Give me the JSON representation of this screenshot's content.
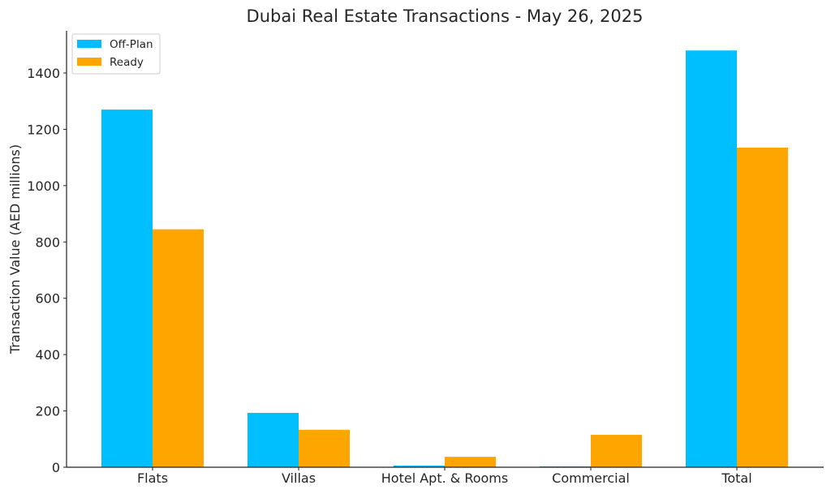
{
  "chart_data": {
    "type": "bar",
    "title": "Dubai Real Estate Transactions - May 26, 2025",
    "xlabel": "",
    "ylabel": "Transaction Value (AED millions)",
    "categories": [
      "Flats",
      "Villas",
      "Hotel Apt. & Rooms",
      "Commercial",
      "Total"
    ],
    "series": [
      {
        "name": "Off-Plan",
        "color": "#00BFFF",
        "values": [
          1270,
          193,
          6,
          3,
          1480
        ]
      },
      {
        "name": "Ready",
        "color": "#FFA500",
        "values": [
          845,
          133,
          37,
          115,
          1135
        ]
      }
    ],
    "ylim": [
      0,
      1550
    ],
    "yticks": [
      0,
      200,
      400,
      600,
      800,
      1000,
      1200,
      1400
    ],
    "grid": false,
    "legend": "top-left"
  }
}
